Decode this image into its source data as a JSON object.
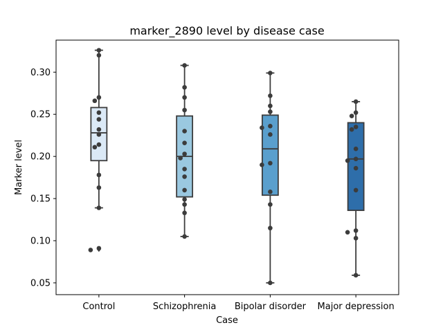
{
  "chart_data": {
    "type": "box",
    "title": "marker_2890 level by disease case",
    "xlabel": "Case",
    "ylabel": "Marker level",
    "ylim": [
      0.036,
      0.338
    ],
    "yticks": [
      0.05,
      0.1,
      0.15,
      0.2,
      0.25,
      0.3
    ],
    "ytick_labels": [
      "0.05",
      "0.10",
      "0.15",
      "0.20",
      "0.25",
      "0.30"
    ],
    "grid": false,
    "categories": [
      "Control",
      "Schizophrenia",
      "Bipolar disorder",
      "Major depression"
    ],
    "colors": [
      "#dbe9f6",
      "#9ac8e0",
      "#5a9fcd",
      "#2e6eaa"
    ],
    "edge_color": "#3c3c3c",
    "point_color": "#3c3c3c",
    "boxes": [
      {
        "q1": 0.195,
        "median": 0.228,
        "q3": 0.258,
        "whisker_low": 0.139,
        "whisker_high": 0.326,
        "outliers": [
          0.09
        ]
      },
      {
        "q1": 0.152,
        "median": 0.2,
        "q3": 0.248,
        "whisker_low": 0.105,
        "whisker_high": 0.308,
        "outliers": []
      },
      {
        "q1": 0.154,
        "median": 0.209,
        "q3": 0.249,
        "whisker_low": 0.05,
        "whisker_high": 0.299,
        "outliers": []
      },
      {
        "q1": 0.136,
        "median": 0.197,
        "q3": 0.24,
        "whisker_low": 0.059,
        "whisker_high": 0.265,
        "outliers": []
      }
    ],
    "points": [
      [
        0.326,
        0.32,
        0.27,
        0.266,
        0.252,
        0.244,
        0.232,
        0.226,
        0.214,
        0.211,
        0.178,
        0.163,
        0.139,
        0.091,
        0.089
      ],
      [
        0.308,
        0.282,
        0.27,
        0.255,
        0.23,
        0.216,
        0.203,
        0.198,
        0.185,
        0.176,
        0.16,
        0.149,
        0.143,
        0.133,
        0.105
      ],
      [
        0.299,
        0.272,
        0.26,
        0.253,
        0.236,
        0.234,
        0.226,
        0.192,
        0.19,
        0.158,
        0.143,
        0.115,
        0.05
      ],
      [
        0.265,
        0.252,
        0.248,
        0.235,
        0.232,
        0.209,
        0.197,
        0.195,
        0.186,
        0.16,
        0.112,
        0.11,
        0.103,
        0.059
      ]
    ]
  }
}
